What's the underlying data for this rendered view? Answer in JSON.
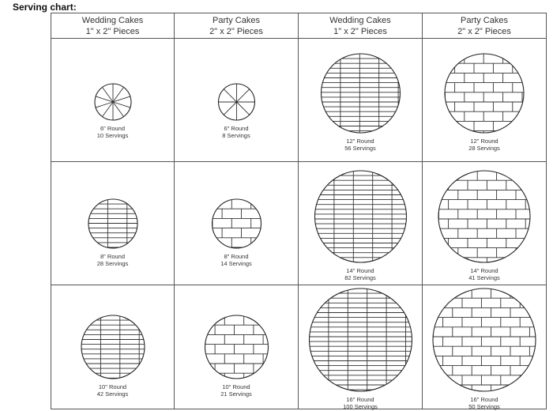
{
  "heading": "Serving chart:",
  "columns": [
    {
      "title": "Wedding Cakes",
      "pieces": "1\" x 2\" Pieces"
    },
    {
      "title": "Party Cakes",
      "pieces": "2\" x 2\" Pieces"
    },
    {
      "title": "Wedding Cakes",
      "pieces": "1\" x 2\" Pieces"
    },
    {
      "title": "Party Cakes",
      "pieces": "2\" x 2\" Pieces"
    }
  ],
  "cells": [
    {
      "size": "6\" Round",
      "servings": "10 Servings",
      "cut": "wedges",
      "slices": 10
    },
    {
      "size": "6\" Round",
      "servings": "8 Servings",
      "cut": "wedges",
      "slices": 8
    },
    {
      "size": "12\" Round",
      "servings": "56 Servings",
      "cut": "grid-1x2",
      "inches": 12
    },
    {
      "size": "12\" Round",
      "servings": "28 Servings",
      "cut": "grid-2x2",
      "inches": 12
    },
    {
      "size": "8\" Round",
      "servings": "28 Servings",
      "cut": "grid-1x2",
      "inches": 8
    },
    {
      "size": "8\" Round",
      "servings": "14 Servings",
      "cut": "grid-2x2",
      "inches": 8
    },
    {
      "size": "14\" Round",
      "servings": "82 Servings",
      "cut": "grid-1x2",
      "inches": 14
    },
    {
      "size": "14\" Round",
      "servings": "41 Servings",
      "cut": "grid-2x2",
      "inches": 14
    },
    {
      "size": "10\" Round",
      "servings": "42 Servings",
      "cut": "grid-1x2",
      "inches": 10
    },
    {
      "size": "10\" Round",
      "servings": "21 Servings",
      "cut": "grid-2x2",
      "inches": 10
    },
    {
      "size": "16\" Round",
      "servings": "100 Servings",
      "cut": "grid-1x2",
      "inches": 16
    },
    {
      "size": "16\" Round",
      "servings": "50 Servings",
      "cut": "grid-2x2",
      "inches": 16
    }
  ]
}
